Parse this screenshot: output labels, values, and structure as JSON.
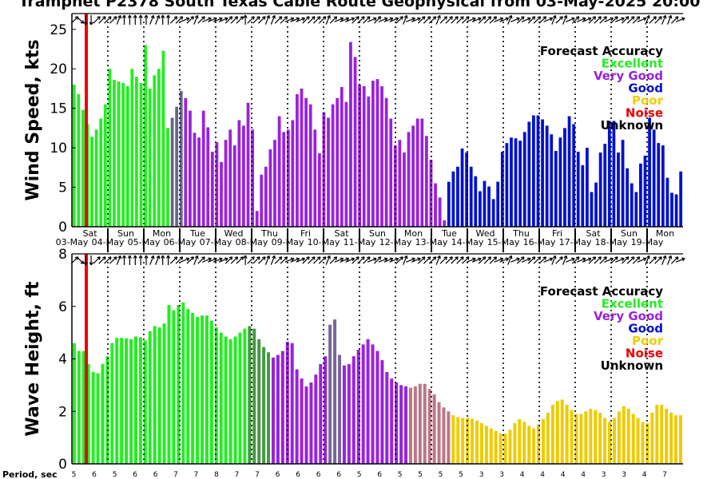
{
  "title": "Tramphet P2378 South Texas Cable Route Geophysical from 03-May-2025 20:00",
  "period_label": "Period, sec",
  "colors": {
    "excellent": "#22ee22",
    "very_good": "#9922dd",
    "good": "#0011cc",
    "poor": "#eecc00",
    "noise": "#ee0000",
    "unknown": "#000000"
  },
  "legend": {
    "title": "Forecast Accuracy",
    "items": [
      {
        "label": "Excellent",
        "color": "#22ee22"
      },
      {
        "label": "Very Good",
        "color": "#9922dd"
      },
      {
        "label": "Good",
        "color": "#0011cc"
      },
      {
        "label": "Poor",
        "color": "#eecc00"
      },
      {
        "label": "Noise",
        "color": "#ee0000"
      },
      {
        "label": "Unknown",
        "color": "#000000"
      }
    ]
  },
  "days": [
    {
      "name": "Sat",
      "date": "03-May",
      "name_color": "#000000"
    },
    {
      "name": "Sun",
      "date": "04-May",
      "name_color": "#ee0000"
    },
    {
      "name": "Mon",
      "date": "05-May",
      "name_color": "#000000"
    },
    {
      "name": "Tue",
      "date": "06-May",
      "name_color": "#000000"
    },
    {
      "name": "Wed",
      "date": "07-May",
      "name_color": "#000000"
    },
    {
      "name": "Thu",
      "date": "08-May",
      "name_color": "#000000"
    },
    {
      "name": "Fri",
      "date": "09-May",
      "name_color": "#000000"
    },
    {
      "name": "Sat",
      "date": "10-May",
      "name_color": "#000000"
    },
    {
      "name": "Sun",
      "date": "11-May",
      "name_color": "#000000"
    },
    {
      "name": "Mon",
      "date": "12-May",
      "name_color": "#000000"
    },
    {
      "name": "Tue",
      "date": "13-May",
      "name_color": "#000000"
    },
    {
      "name": "Wed",
      "date": "14-May",
      "name_color": "#000000"
    },
    {
      "name": "Thu",
      "date": "15-May",
      "name_color": "#000000"
    },
    {
      "name": "Fri",
      "date": "16-May",
      "name_color": "#000000"
    },
    {
      "name": "Sat",
      "date": "17-May",
      "name_color": "#000000"
    },
    {
      "name": "Sun",
      "date": "18-May",
      "name_color": "#000000"
    },
    {
      "name": "Mon",
      "date": "19-May",
      "name_color": "#000000"
    }
  ],
  "periods": [
    5,
    6,
    5,
    6,
    6,
    7,
    7,
    8,
    7,
    7,
    6,
    6,
    6,
    6,
    5,
    6,
    5,
    5,
    5,
    5,
    3,
    3,
    4,
    4,
    4,
    4,
    3,
    3,
    4,
    7
  ],
  "chart_data": [
    {
      "type": "bar",
      "ylabel": "Wind Speed, kts",
      "ylim": [
        0,
        27
      ],
      "yticks": [
        0,
        5,
        10,
        15,
        20,
        25
      ],
      "values": [
        18,
        16.8,
        14.8,
        13,
        11.4,
        12.3,
        13.7,
        15.5,
        20,
        18.6,
        18.4,
        18.2,
        17.8,
        20,
        19,
        18.2,
        23,
        17.5,
        19.2,
        20,
        22.3,
        12.5,
        13.8,
        15.2,
        17.2,
        16.3,
        14.7,
        11.9,
        11.3,
        14.7,
        12.6,
        9.5,
        10.7,
        8.2,
        11,
        12.3,
        10.3,
        13.5,
        12.8,
        15.7,
        12.3,
        2,
        6.6,
        7.6,
        9.8,
        11,
        14,
        12,
        12.3,
        13.5,
        16.8,
        17.5,
        16.3,
        15.5,
        12.3,
        9.3,
        14.5,
        13.8,
        15.5,
        16.3,
        17.7,
        15.8,
        23.4,
        21.5,
        18,
        17.8,
        16.5,
        18.5,
        18.7,
        17.8,
        16.3,
        13.7,
        10.3,
        11,
        9.4,
        12,
        12.8,
        13.7,
        13.7,
        11.5,
        8.5,
        5.5,
        3.7,
        0.8,
        5.7,
        7,
        7.6,
        9.9,
        9.4,
        7.6,
        6.4,
        4.5,
        5.8,
        5.1,
        3.5,
        5.7,
        9.5,
        10.6,
        11.3,
        11.2,
        10.9,
        12,
        13.3,
        14.1,
        14.1,
        13.6,
        12.8,
        11.7,
        9.6,
        11.3,
        12.5,
        14,
        13,
        9.5,
        7.8,
        10,
        4.4,
        5.6,
        9.4,
        10.5,
        13.4,
        13.4,
        9.4,
        11,
        7.4,
        5.5,
        4.4,
        8,
        9,
        13.8,
        12.3,
        10.6,
        10.3,
        6.2,
        4.3,
        4.1,
        7
      ],
      "quality": [
        "E",
        "E",
        "E",
        "E",
        "E",
        "E",
        "E",
        "E",
        "E",
        "E",
        "E",
        "E",
        "E",
        "E",
        "E",
        "E",
        "E",
        "E",
        "E",
        "E",
        "E",
        "E",
        "T",
        "T",
        "T",
        "V",
        "V",
        "V",
        "V",
        "V",
        "V",
        "V",
        "V",
        "V",
        "V",
        "V",
        "V",
        "V",
        "V",
        "V",
        "V",
        "V",
        "V",
        "V",
        "V",
        "V",
        "V",
        "V",
        "V",
        "V",
        "V",
        "V",
        "V",
        "V",
        "V",
        "V",
        "V",
        "V",
        "V",
        "V",
        "V",
        "V",
        "V",
        "V",
        "V",
        "V",
        "V",
        "V",
        "V",
        "V",
        "V",
        "V",
        "V",
        "V",
        "V",
        "V",
        "V",
        "V",
        "V",
        "V",
        "V",
        "V",
        "V",
        "V",
        "G",
        "G",
        "G",
        "G",
        "G",
        "G",
        "G",
        "G",
        "G",
        "G",
        "G",
        "G",
        "G",
        "G",
        "G",
        "G",
        "G",
        "G",
        "G",
        "G",
        "G",
        "G",
        "G",
        "G",
        "G",
        "G",
        "G",
        "G",
        "G",
        "G",
        "G",
        "G",
        "G",
        "G",
        "G",
        "G",
        "G",
        "G",
        "G",
        "G",
        "G",
        "G",
        "G",
        "G",
        "G",
        "G",
        "G",
        "G",
        "G",
        "G",
        "G",
        "G",
        "G"
      ],
      "directions": [
        315,
        45,
        90,
        90,
        315,
        315,
        315,
        315,
        292,
        270,
        270,
        270,
        270,
        270,
        292,
        292,
        270,
        270,
        315,
        315,
        337,
        315,
        292,
        315,
        337,
        337,
        337,
        337,
        315,
        315,
        315,
        270,
        315,
        315,
        315,
        292,
        292,
        315,
        315,
        337,
        337,
        337,
        315,
        315,
        315,
        315,
        292,
        315,
        337,
        337,
        337,
        315,
        315,
        315,
        337,
        315,
        337,
        337,
        337,
        315,
        292,
        337,
        337,
        315,
        315,
        315,
        292,
        315,
        315,
        315,
        315,
        315,
        337,
        337,
        315,
        315,
        315,
        337,
        337,
        292,
        337,
        315,
        337,
        315,
        315,
        315,
        337,
        292,
        315,
        292,
        337,
        315,
        337,
        337,
        315,
        315,
        315,
        337,
        315,
        337,
        315,
        315,
        315,
        337,
        292,
        315,
        315,
        292,
        292,
        315,
        337
      ]
    },
    {
      "type": "bar",
      "ylabel": "Wave Height, ft",
      "ylim": [
        0,
        8
      ],
      "yticks": [
        0,
        2,
        4,
        6,
        8
      ],
      "values": [
        4.6,
        4.3,
        4.3,
        3.8,
        3.5,
        3.45,
        3.8,
        4.1,
        4.6,
        4.8,
        4.8,
        4.78,
        4.75,
        4.85,
        4.82,
        4.7,
        5.05,
        5.25,
        5.2,
        5.35,
        6.05,
        5.85,
        6.05,
        6.15,
        5.9,
        5.75,
        5.6,
        5.65,
        5.65,
        5.45,
        5.2,
        5,
        4.85,
        4.75,
        4.85,
        5,
        5.15,
        5.25,
        5.15,
        4.75,
        4.45,
        4.25,
        4.05,
        4.15,
        4.3,
        4.65,
        4.6,
        3.6,
        3.25,
        2.95,
        3.1,
        3.4,
        3.8,
        4.1,
        5.3,
        5.5,
        4.15,
        3.75,
        3.8,
        4.1,
        4.35,
        4.55,
        4.75,
        4.55,
        4.3,
        3.95,
        3.5,
        3.25,
        3.1,
        3,
        2.95,
        2.9,
        2.95,
        3.05,
        3.05,
        2.85,
        2.65,
        2.35,
        2.15,
        2,
        1.85,
        1.78,
        1.75,
        1.75,
        1.72,
        1.65,
        1.55,
        1.45,
        1.35,
        1.25,
        1.15,
        1.15,
        1.3,
        1.55,
        1.7,
        1.6,
        1.45,
        1.35,
        1.5,
        1.7,
        1.95,
        2.25,
        2.4,
        2.45,
        2.25,
        2.05,
        1.9,
        1.9,
        2,
        2.1,
        2.05,
        1.95,
        1.75,
        1.6,
        1.75,
        2,
        2.2,
        2.1,
        1.9,
        1.75,
        1.6,
        1.55,
        1.95,
        2.25,
        2.25,
        2.1,
        1.95,
        1.85,
        1.85
      ]
    }
  ]
}
